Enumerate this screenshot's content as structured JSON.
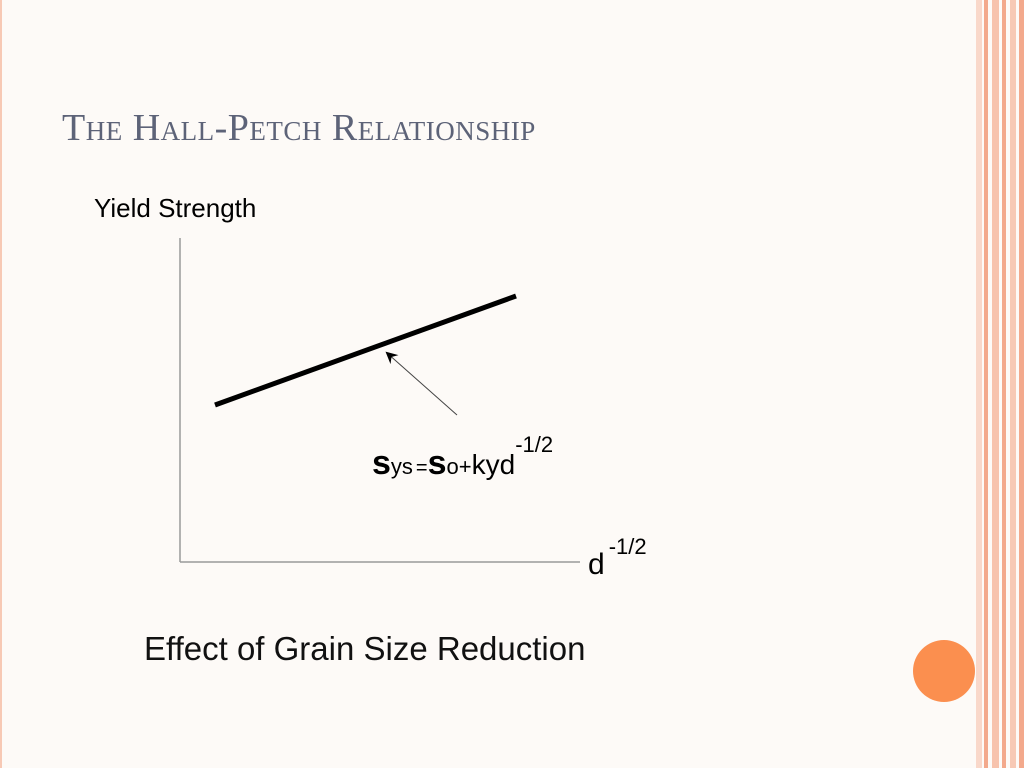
{
  "slide": {
    "title": "The Hall-Petch Relationship",
    "caption": "Effect of Grain Size Reduction"
  },
  "diagram": {
    "y_axis_label": "Yield Strength",
    "x_axis_label": {
      "base": "d",
      "exponent": "-1/2"
    },
    "equation": {
      "lhs_symbol": "s",
      "lhs_subscript": "ys",
      "equals": "=",
      "rhs_symbol": "s",
      "rhs_subscript": "o",
      "plus": "+",
      "coefficient": "ky",
      "variable": "d",
      "exponent": "-1/2"
    }
  },
  "colors": {
    "title": "#5d6378",
    "accent_circle": "#fb8f4f",
    "border_stripes": [
      "#f7c9b5",
      "#f3a98c",
      "#f7c9b5",
      "#f3a98c"
    ],
    "axis": "#9a9a9a",
    "line": "#000000"
  }
}
